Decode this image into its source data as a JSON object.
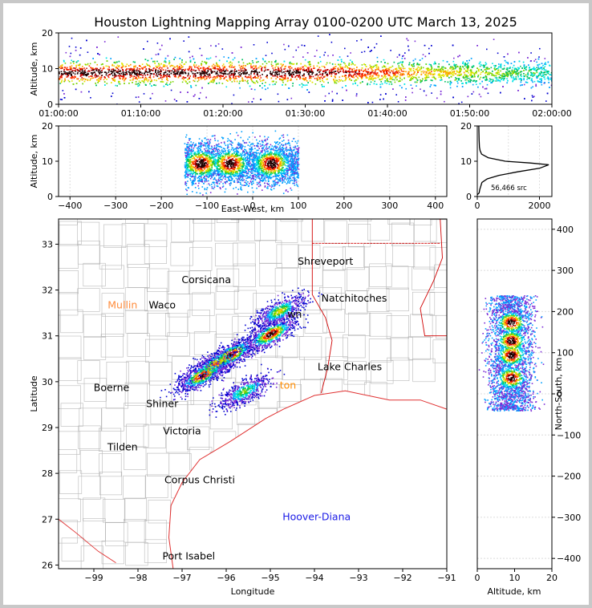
{
  "figure_title": "Houston Lightning Mapping Array 0100-0200 UTC March 13, 2025",
  "colors": {
    "density": [
      "#0000d0",
      "#7b2bd6",
      "#00a0ff",
      "#00e5e5",
      "#00c060",
      "#7ad400",
      "#e5e500",
      "#ff9a00",
      "#ff3000",
      "#c80000",
      "#200000"
    ],
    "coast": "#e03030",
    "county": "#b8b8b8",
    "state": "#d00000"
  },
  "chart_data": [
    {
      "id": "time_altitude",
      "type": "heatmap",
      "ylabel": "Altitude, km",
      "xlabel": "",
      "x_ticks": [
        "01:00:00",
        "01:10:00",
        "01:20:00",
        "01:30:00",
        "01:40:00",
        "01:50:00",
        "02:00:00"
      ],
      "y_ticks": [
        "0",
        "10",
        "20"
      ],
      "ylim": [
        0,
        20
      ],
      "xlim": [
        "01:00:00",
        "02:00:00"
      ],
      "core_altitude_km": 9
    },
    {
      "id": "eastwest_altitude",
      "type": "heatmap",
      "xlabel": "East-West, km",
      "ylabel": "Altitude, km",
      "x_ticks": [
        "−400",
        "−300",
        "−200",
        "−100",
        "0",
        "100",
        "200",
        "300",
        "400"
      ],
      "y_ticks": [
        "0",
        "10",
        "20"
      ],
      "xlim": [
        -425,
        425
      ],
      "ylim": [
        0,
        20
      ],
      "cells_x_km": [
        -115,
        -50,
        40
      ]
    },
    {
      "id": "altitude_histogram",
      "type": "line",
      "x_ticks": [
        "0",
        "2000"
      ],
      "y_ticks": [
        "0",
        "10",
        "20"
      ],
      "xlim": [
        0,
        2400
      ],
      "ylim": [
        0,
        20
      ],
      "annotation": "56,466 src",
      "points": [
        [
          0,
          0.5
        ],
        [
          60,
          1
        ],
        [
          80,
          2
        ],
        [
          150,
          4
        ],
        [
          320,
          5
        ],
        [
          700,
          6
        ],
        [
          1300,
          7
        ],
        [
          2000,
          8
        ],
        [
          2300,
          9
        ],
        [
          1700,
          9.5
        ],
        [
          900,
          10
        ],
        [
          350,
          11
        ],
        [
          140,
          12
        ],
        [
          90,
          13
        ],
        [
          70,
          14
        ],
        [
          60,
          16
        ],
        [
          55,
          18
        ],
        [
          50,
          20
        ]
      ]
    },
    {
      "id": "plan_view",
      "type": "scatter",
      "xlabel": "Longitude",
      "ylabel": "Latitude",
      "x_ticks": [
        "−99",
        "−98",
        "−97",
        "−96",
        "−95",
        "−94",
        "−93",
        "−92",
        "−91"
      ],
      "y_ticks": [
        "26",
        "27",
        "28",
        "29",
        "30",
        "31",
        "32",
        "33"
      ],
      "xlim": [
        -99.8,
        -91
      ],
      "ylim": [
        25.92,
        33.55
      ],
      "places": [
        {
          "name": "Shreveport",
          "lon": -93.75,
          "lat": 32.55,
          "color": "#000000"
        },
        {
          "name": "Corsicana",
          "lon": -96.45,
          "lat": 32.15,
          "color": "#000000"
        },
        {
          "name": "Natchitoches",
          "lon": -93.1,
          "lat": 31.75,
          "color": "#000000"
        },
        {
          "name": "Mullin",
          "lon": -98.35,
          "lat": 31.6,
          "color": "#ff8c3c"
        },
        {
          "name": "Waco",
          "lon": -97.45,
          "lat": 31.6,
          "color": "#000000"
        },
        {
          "name": "Lake Charles",
          "lon": -93.2,
          "lat": 30.25,
          "color": "#000000"
        },
        {
          "name": "Boerne",
          "lon": -98.6,
          "lat": 29.8,
          "color": "#000000"
        },
        {
          "name": "Shiner",
          "lon": -97.45,
          "lat": 29.45,
          "color": "#000000"
        },
        {
          "name": "Victoria",
          "lon": -97.0,
          "lat": 28.85,
          "color": "#000000"
        },
        {
          "name": "Tilden",
          "lon": -98.35,
          "lat": 28.5,
          "color": "#000000"
        },
        {
          "name": "Corpus Christi",
          "lon": -96.6,
          "lat": 27.78,
          "color": "#000000"
        },
        {
          "name": "Hoover-Diana",
          "lon": -93.95,
          "lat": 26.98,
          "color": "#1a1ae6"
        },
        {
          "name": "Port Isabel",
          "lon": -96.85,
          "lat": 26.12,
          "color": "#000000"
        }
      ],
      "partial_labels": [
        {
          "text": "wn",
          "lon": -94.45,
          "lat": 31.4,
          "color": "#000000"
        },
        {
          "text": "ton",
          "lon": -94.6,
          "lat": 29.85,
          "color": "#ff8c00"
        }
      ]
    },
    {
      "id": "altitude_northsouth",
      "type": "heatmap",
      "xlabel": "Altitude, km",
      "ylabel": "North-South, km",
      "x_ticks": [
        "0",
        "10",
        "20"
      ],
      "y_ticks": [
        "−400",
        "−300",
        "−200",
        "−100",
        "0",
        "100",
        "200",
        "300",
        "400"
      ],
      "xlim": [
        0,
        20
      ],
      "ylim": [
        -425,
        425
      ],
      "cores_ns_km": [
        175,
        130,
        95,
        40
      ]
    }
  ]
}
